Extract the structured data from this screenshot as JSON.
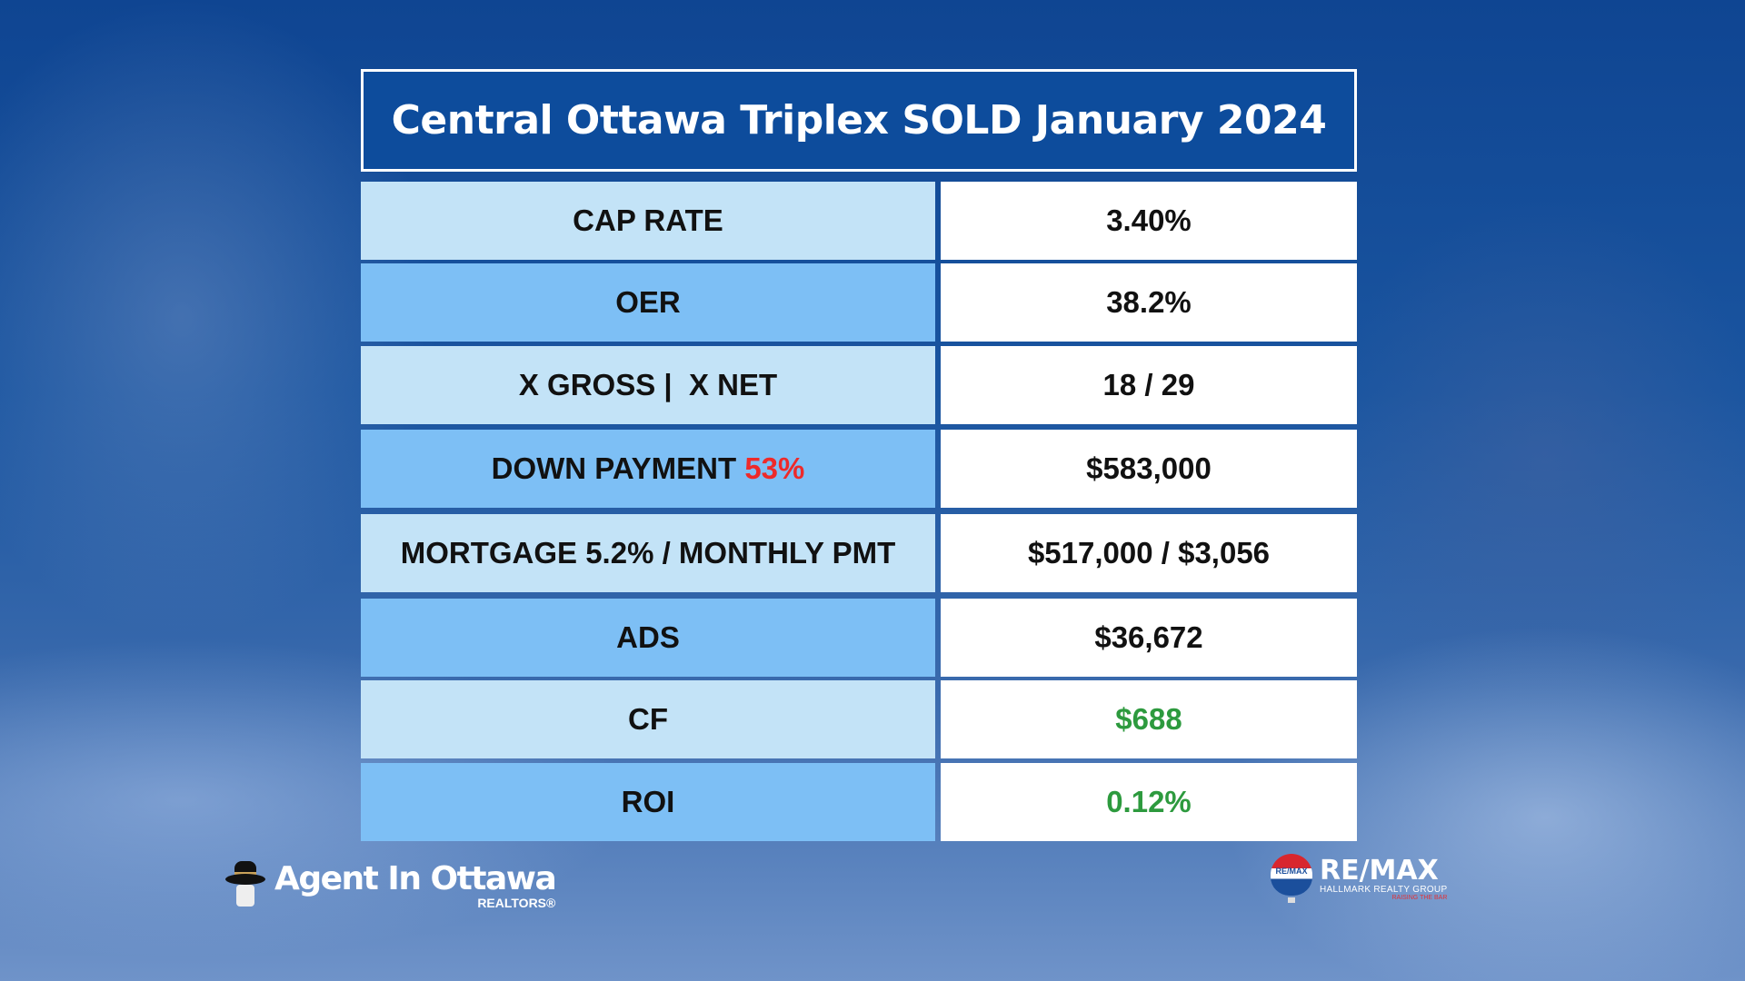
{
  "title": "Central Ottawa Triplex SOLD January 2024",
  "rows": [
    {
      "label": "CAP RATE",
      "value": "3.40%"
    },
    {
      "label": "OER",
      "value": "38.2%"
    },
    {
      "label": "X GROSS |  X NET",
      "value": "18 / 29"
    },
    {
      "label": "DOWN PAYMENT ",
      "label_highlight": "53%",
      "value": "$583,000"
    },
    {
      "label": "MORTGAGE 5.2% / MONTHLY PMT",
      "value": "$517,000 / $3,056"
    },
    {
      "label": "ADS",
      "value": "$36,672"
    },
    {
      "label": "CF",
      "value": "$688"
    },
    {
      "label": "ROI",
      "value": "0.12%"
    }
  ],
  "colors": {
    "header": "#0d4c9c",
    "row_light": "#c3e3f7",
    "row_dark": "#7dbff5",
    "highlight_red": "#ee2a2a",
    "positive_green": "#2d9a3e"
  },
  "logos": {
    "left": {
      "name": "Agent In Ottawa",
      "sub": "REALTORS®",
      "icon": "detective-hat-icon"
    },
    "right": {
      "balloon_text": "RE/MAX",
      "name": "RE/MAX",
      "sub": "HALLMARK REALTY GROUP",
      "tagline": "RAISING THE BAR",
      "icon": "hot-air-balloon-icon"
    }
  }
}
